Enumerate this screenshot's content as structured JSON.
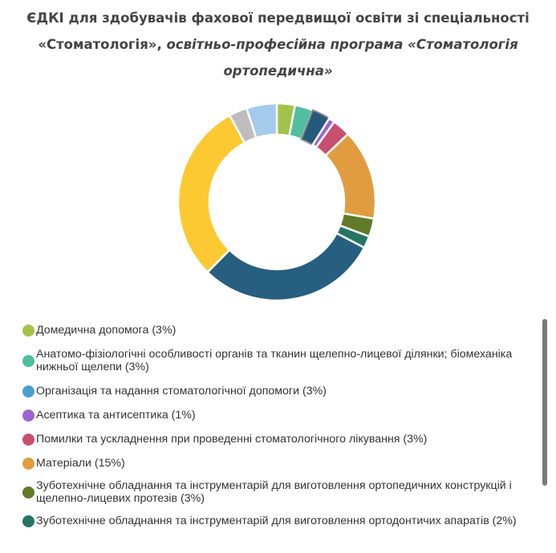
{
  "chart_data": {
    "type": "pie",
    "variant": "donut",
    "title_bold": "ЄДКІ для здобувачів фахової передвищої освіти зі спеціальності «Стоматологія»,",
    "title_italic": "освітньо-професійна програма «Стоматологія ортопедична»",
    "legend_position": "bottom",
    "slices": [
      {
        "label": "Домедична допомога (3%)",
        "value": 3,
        "color": "#a1c34a"
      },
      {
        "label": "Анатомо-фізіологічні особливості органів та тканин щелепно-лицевої ділянки; біомеханіка нижньої щелепи (3%)",
        "value": 3,
        "color": "#4fbfa0"
      },
      {
        "label": "Організація та надання стоматологічної допомоги (3%)",
        "value": 3,
        "color": "#4a9fd0",
        "slice_color": "#255a7a"
      },
      {
        "label": "Асептика та антисептика (1%)",
        "value": 1,
        "color": "#9b64d0"
      },
      {
        "label": "Помилки та ускладнення при проведенні стоматологічного лікування (3%)",
        "value": 3,
        "color": "#c7506f"
      },
      {
        "label": "Матеріали (15%)",
        "value": 15,
        "color": "#e09c3e"
      },
      {
        "label": "Зуботехнічне обладнання та інструментарій для виготовлення ортопедичних конструкцій і щелепно-лицевих протезів (3%)",
        "value": 3,
        "color": "#607a28"
      },
      {
        "label": "Зуботехнічне обладнання та інструментарій для виготовлення ортодонтичих апаратів (2%)",
        "value": 2,
        "color": "#257565"
      },
      {
        "label": "",
        "value": 30,
        "color": "#265f80"
      },
      {
        "label": "",
        "value": 30,
        "color": "#fcc932"
      },
      {
        "label": "",
        "value": 3,
        "color": "#bdbdbd"
      },
      {
        "label": "",
        "value": 5,
        "color": "#a4cbec"
      }
    ]
  }
}
